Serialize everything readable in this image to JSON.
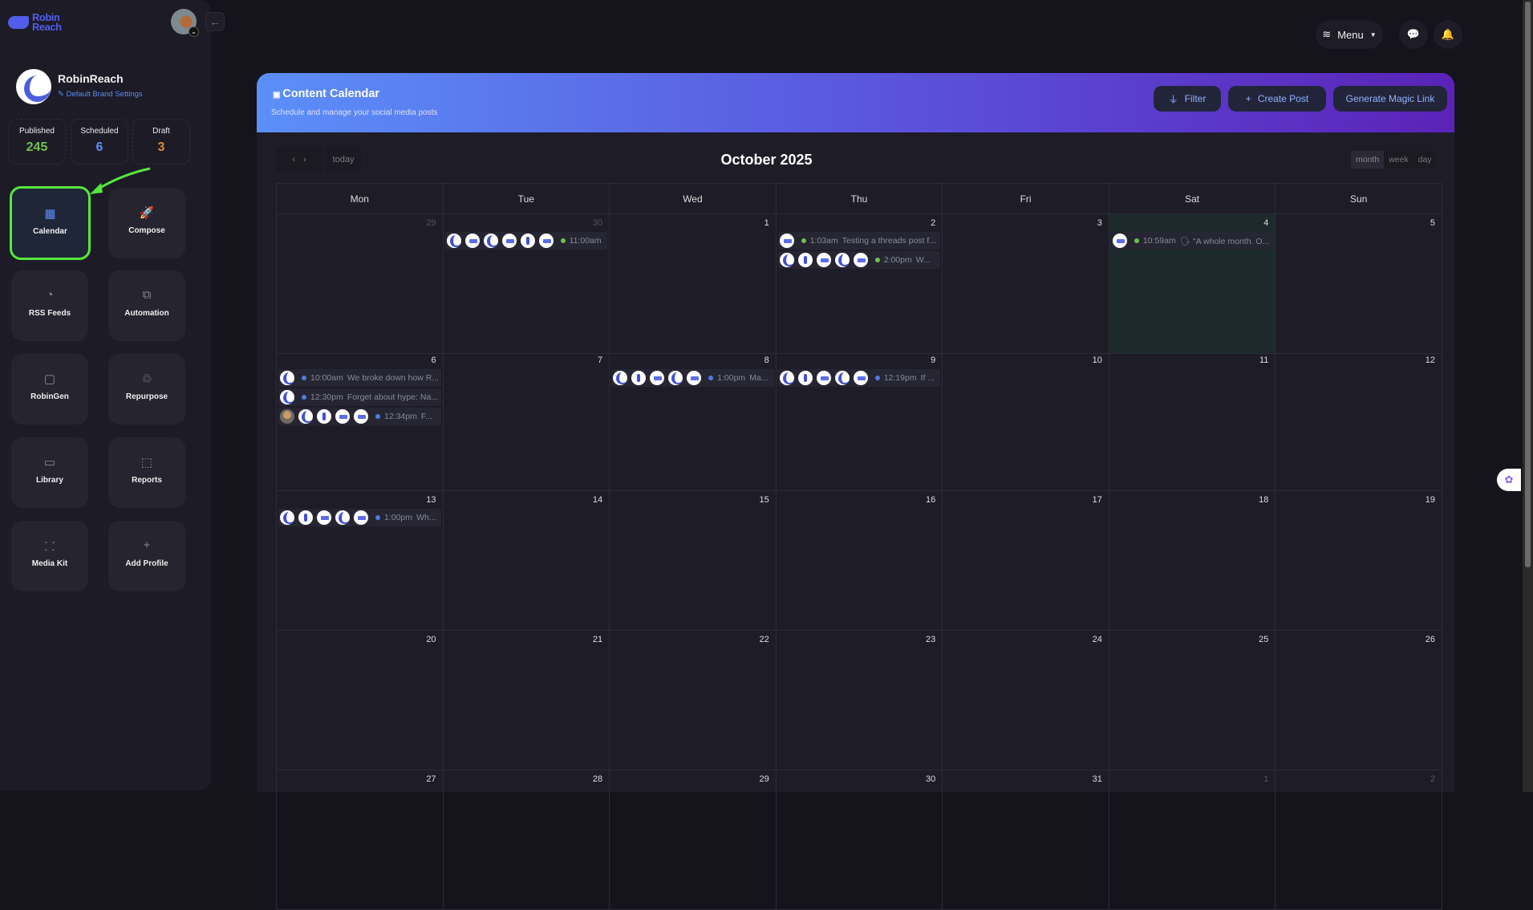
{
  "brand": {
    "logo_text": "Robin Reach",
    "profile_name": "RobinReach",
    "brand_settings": "Default Brand Settings"
  },
  "stats": [
    {
      "label": "Published",
      "value": "245",
      "color": "#6fc24f"
    },
    {
      "label": "Scheduled",
      "value": "6",
      "color": "#5b8cf8"
    },
    {
      "label": "Draft",
      "value": "3",
      "color": "#e0872f"
    }
  ],
  "nav": [
    {
      "label": "Calendar",
      "icon": "calendar-icon",
      "active": true
    },
    {
      "label": "Compose",
      "icon": "rocket-icon"
    },
    {
      "label": "RSS Feeds",
      "icon": "rss-icon"
    },
    {
      "label": "Automation",
      "icon": "code-window-icon"
    },
    {
      "label": "RobinGen",
      "icon": "note-icon"
    },
    {
      "label": "Repurpose",
      "icon": "recycle-icon"
    },
    {
      "label": "Library",
      "icon": "folder-icon"
    },
    {
      "label": "Reports",
      "icon": "chart-icon"
    },
    {
      "label": "Media Kit",
      "icon": "grid-circles-icon"
    },
    {
      "label": "Add Profile",
      "icon": "plus-icon"
    }
  ],
  "topbar": {
    "menu_label": "Menu"
  },
  "hero": {
    "title": "Content Calendar",
    "subtitle": "Schedule and manage your social media posts",
    "filter": "Filter",
    "create_post": "Create Post",
    "magic_link": "Generate Magic Link",
    "gradient": [
      "#5b8ff9",
      "#5b22b8"
    ]
  },
  "calendar": {
    "title": "October 2025",
    "today_label": "today",
    "views": [
      "month",
      "week",
      "day"
    ],
    "active_view": "month",
    "weekdays": [
      "Mon",
      "Tue",
      "Wed",
      "Thu",
      "Fri",
      "Sat",
      "Sun"
    ],
    "status_colors": {
      "published": "#6fbf4a",
      "scheduled": "#4f7be0"
    },
    "weeks": [
      [
        {
          "day": "29",
          "muted": true
        },
        {
          "day": "30",
          "muted": true,
          "events": [
            {
              "avatars": [
                "a",
                "c",
                "a",
                "c",
                "b",
                "c"
              ],
              "status": "published",
              "time": "11:00am",
              "text": ""
            }
          ]
        },
        {
          "day": "1"
        },
        {
          "day": "2",
          "events": [
            {
              "avatars": [
                "c"
              ],
              "status": "published",
              "time": "1:03am",
              "text": "Testing a threads post f..."
            },
            {
              "avatars": [
                "a",
                "b",
                "c",
                "a",
                "c"
              ],
              "status": "published",
              "time": "2:00pm",
              "text": "W..."
            }
          ]
        },
        {
          "day": "3"
        },
        {
          "day": "4",
          "today": true,
          "events": [
            {
              "avatars": [
                "c"
              ],
              "status": "published",
              "time": "10:59am",
              "text": "🗣 \"A whole month. O..."
            }
          ]
        },
        {
          "day": "5"
        }
      ],
      [
        {
          "day": "6",
          "events": [
            {
              "avatars": [
                "a"
              ],
              "status": "scheduled",
              "time": "10:00am",
              "text": "We broke down how R..."
            },
            {
              "avatars": [
                "a"
              ],
              "status": "scheduled",
              "time": "12:30pm",
              "text": "Forget about hype: Na..."
            },
            {
              "avatars": [
                "p",
                "a",
                "b",
                "c",
                "c"
              ],
              "status": "scheduled",
              "time": "12:34pm",
              "text": "F..."
            }
          ]
        },
        {
          "day": "7"
        },
        {
          "day": "8",
          "events": [
            {
              "avatars": [
                "a",
                "b",
                "c",
                "a",
                "c"
              ],
              "status": "scheduled",
              "time": "1:00pm",
              "text": "Ma..."
            }
          ]
        },
        {
          "day": "9",
          "events": [
            {
              "avatars": [
                "a",
                "b",
                "c",
                "a",
                "c"
              ],
              "status": "scheduled",
              "time": "12:19pm",
              "text": "If ..."
            }
          ]
        },
        {
          "day": "10"
        },
        {
          "day": "11"
        },
        {
          "day": "12"
        }
      ],
      [
        {
          "day": "13",
          "events": [
            {
              "avatars": [
                "a",
                "b",
                "c",
                "a",
                "c"
              ],
              "status": "scheduled",
              "time": "1:00pm",
              "text": "Wh..."
            }
          ]
        },
        {
          "day": "14"
        },
        {
          "day": "15"
        },
        {
          "day": "16"
        },
        {
          "day": "17"
        },
        {
          "day": "18"
        },
        {
          "day": "19"
        }
      ],
      [
        {
          "day": "20"
        },
        {
          "day": "21"
        },
        {
          "day": "22"
        },
        {
          "day": "23"
        },
        {
          "day": "24"
        },
        {
          "day": "25"
        },
        {
          "day": "26"
        }
      ],
      [
        {
          "day": "27"
        },
        {
          "day": "28"
        },
        {
          "day": "29"
        },
        {
          "day": "30"
        },
        {
          "day": "31"
        },
        {
          "day": "1",
          "muted": true
        },
        {
          "day": "2",
          "muted": true
        }
      ]
    ]
  }
}
